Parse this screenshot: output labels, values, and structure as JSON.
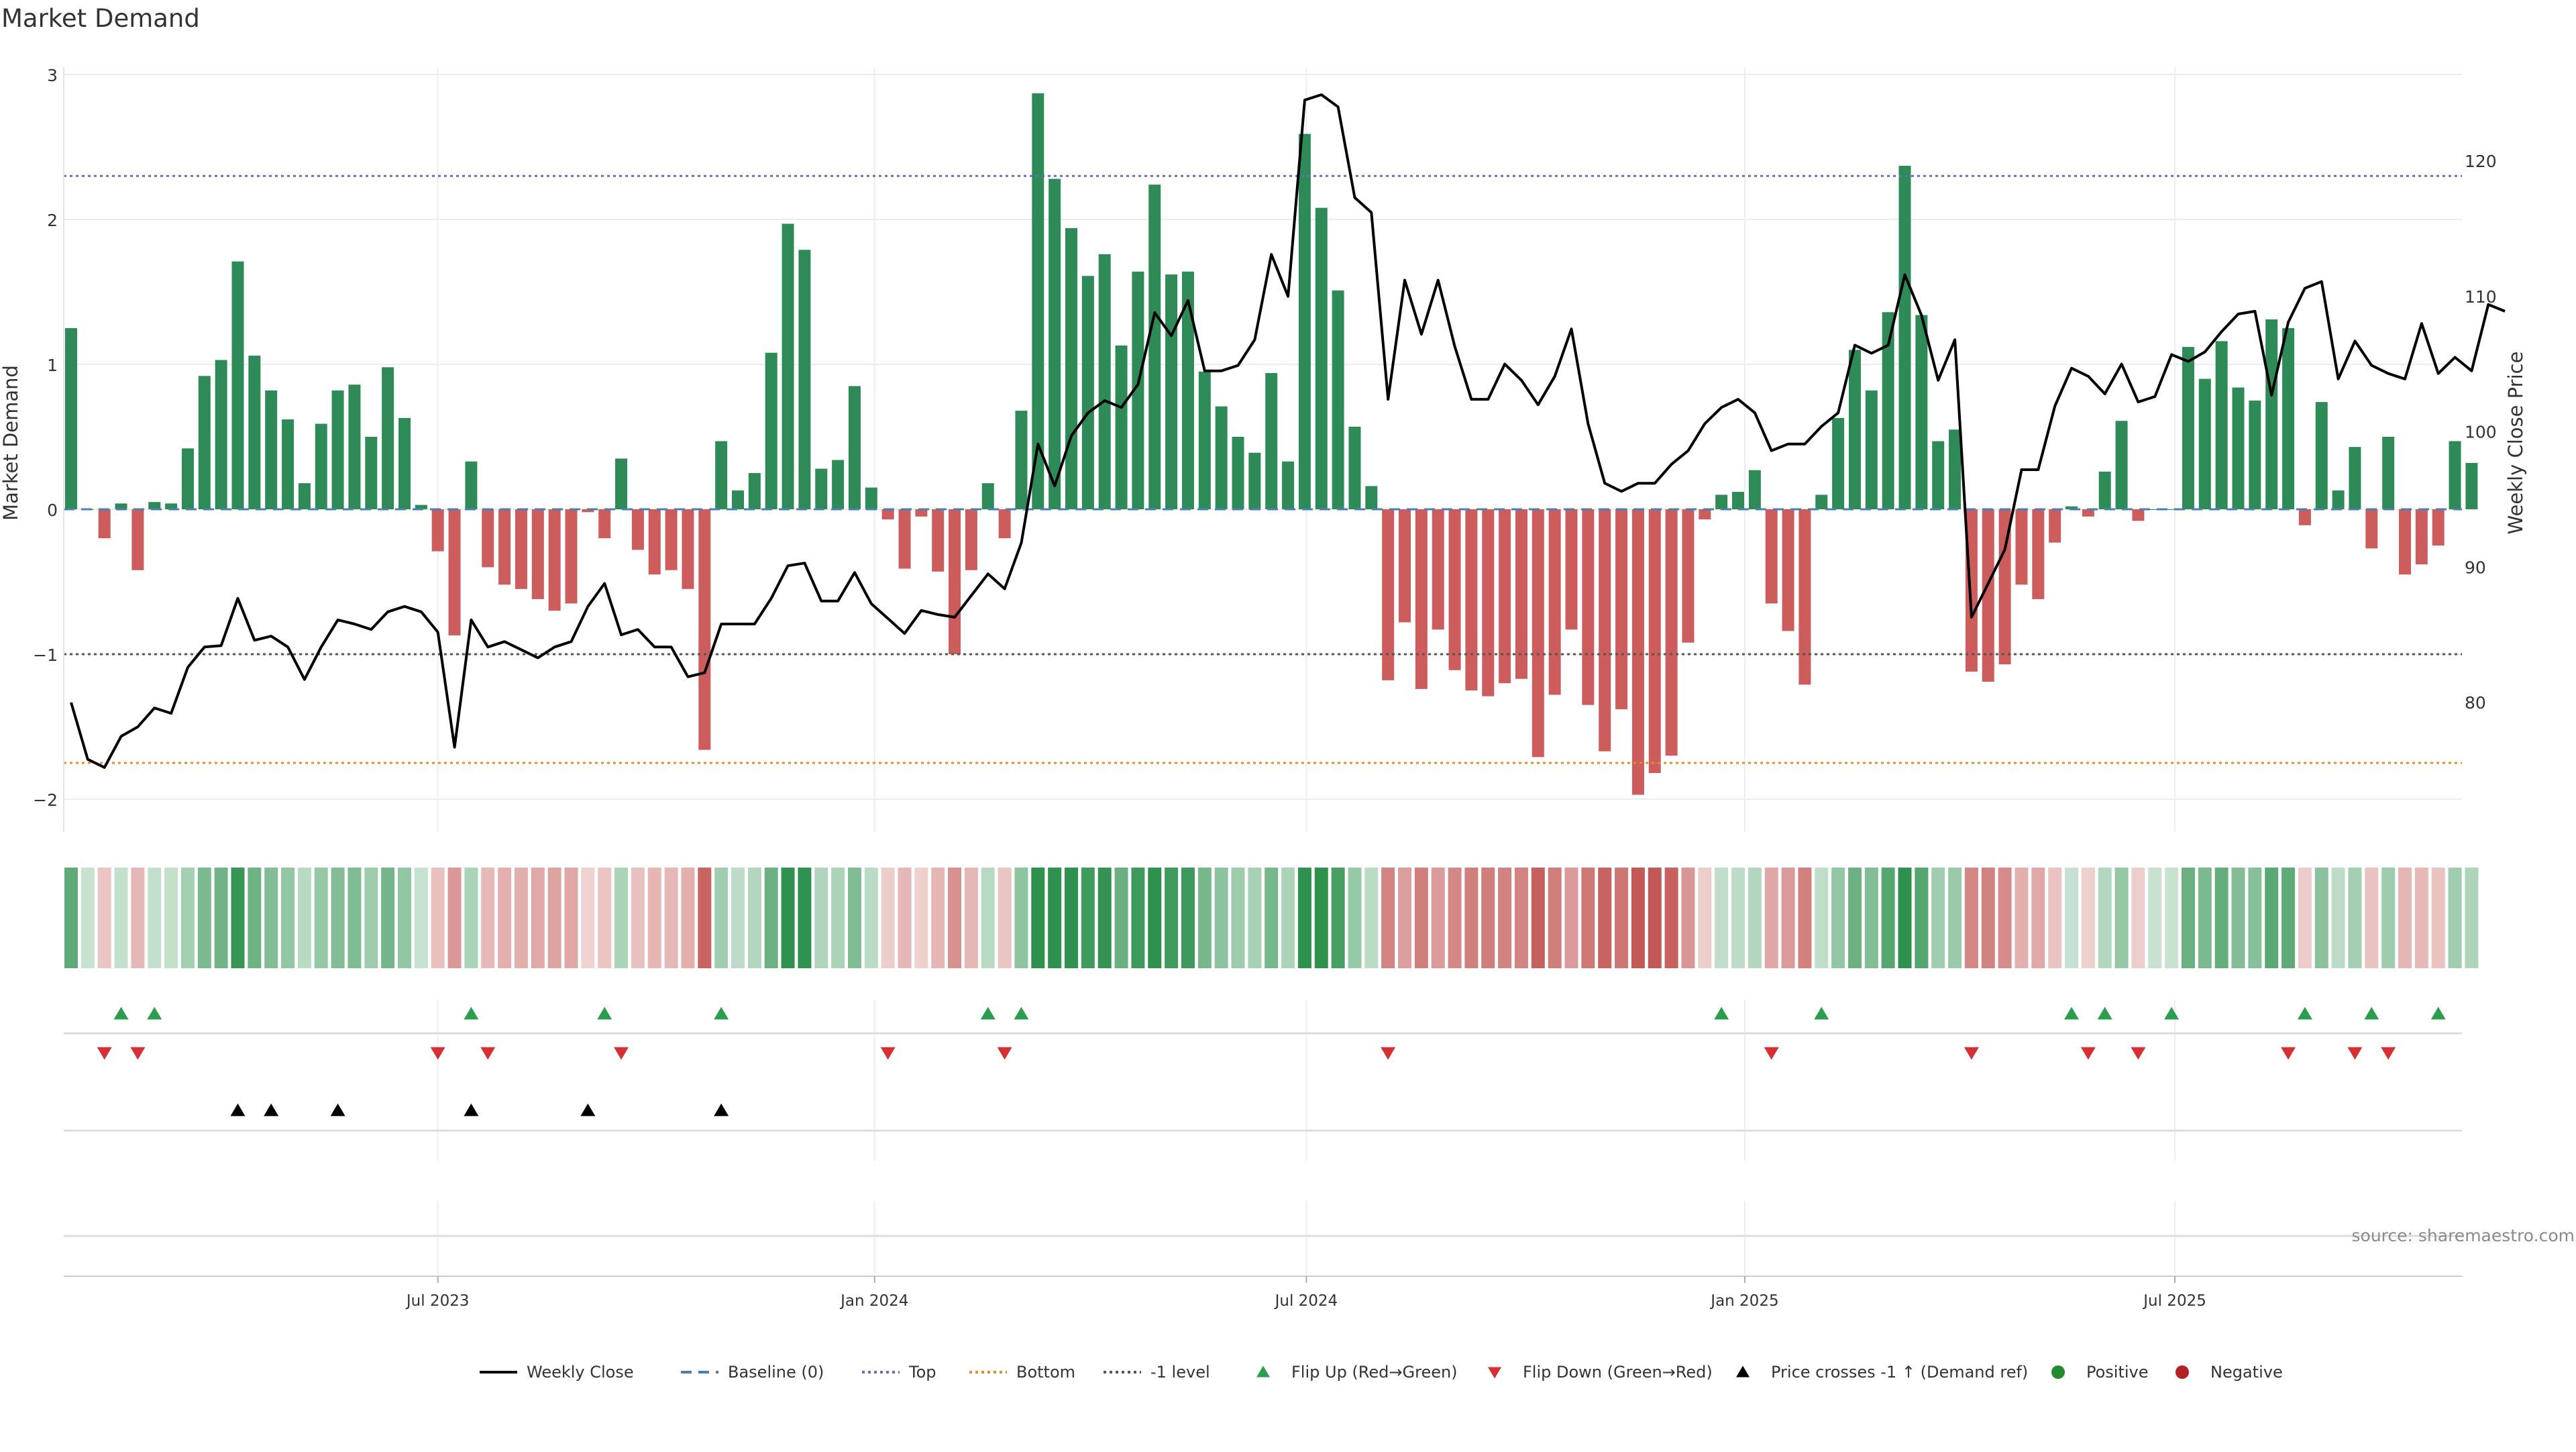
{
  "chart_data": {
    "type": "bar",
    "title": "Market Demand",
    "source": "source: sharemaestro.com",
    "ylabel_left": "Market Demand",
    "ylabel_right": "Weekly Close Price",
    "ylim_left": [
      -2.2,
      3.0
    ],
    "ylim_right": [
      70,
      127
    ],
    "yticks_left": [
      "3",
      "2",
      "1",
      "0",
      "−1",
      "−2"
    ],
    "ytick_values_left": [
      3,
      2,
      1,
      0,
      -1,
      -2
    ],
    "yticks_right": [
      "120",
      "110",
      "100",
      "90",
      "80"
    ],
    "ytick_values_right": [
      120,
      110,
      100,
      90,
      80
    ],
    "reference_lines": {
      "top": 2.3,
      "bottom": -1.75,
      "minus_one": -1.0,
      "baseline": 0
    },
    "x_ticks": [
      {
        "label": "Jul 2023",
        "index": 22
      },
      {
        "label": "Jan 2024",
        "index": 48.2
      },
      {
        "label": "Jul 2024",
        "index": 74.1
      },
      {
        "label": "Jan 2025",
        "index": 100.4
      },
      {
        "label": "Jul 2025",
        "index": 126.2
      }
    ],
    "demand": [
      1.25,
      0,
      -0.2,
      0.04,
      -0.42,
      0.05,
      0.04,
      0.42,
      0.92,
      1.03,
      1.71,
      1.06,
      0.82,
      0.62,
      0.18,
      0.59,
      0.82,
      0.86,
      0.5,
      0.98,
      0.63,
      0.03,
      -0.29,
      -0.87,
      0.33,
      -0.4,
      -0.52,
      -0.55,
      -0.62,
      -0.7,
      -0.65,
      -0.02,
      -0.2,
      0.35,
      -0.28,
      -0.45,
      -0.42,
      -0.55,
      -1.66,
      0.47,
      0.13,
      0.25,
      1.08,
      1.97,
      1.79,
      0.28,
      0.34,
      0.85,
      0.15,
      -0.07,
      -0.41,
      -0.05,
      -0.43,
      -1.0,
      -0.42,
      0.18,
      -0.2,
      0.68,
      2.87,
      2.28,
      1.94,
      1.61,
      1.76,
      1.13,
      1.64,
      2.24,
      1.62,
      1.64,
      0.95,
      0.71,
      0.5,
      0.39,
      0.94,
      0.33,
      2.59,
      2.08,
      1.51,
      0.57,
      0.16,
      -1.18,
      -0.78,
      -1.24,
      -0.83,
      -1.11,
      -1.25,
      -1.29,
      -1.2,
      -1.17,
      -1.71,
      -1.28,
      -0.83,
      -1.35,
      -1.67,
      -1.38,
      -1.97,
      -1.82,
      -1.7,
      -0.92,
      -0.07,
      0.1,
      0.12,
      0.27,
      -0.65,
      -0.84,
      -1.21,
      0.1,
      0.63,
      1.1,
      0.82,
      1.36,
      2.37,
      1.34,
      0.47,
      0.55,
      -1.12,
      -1.19,
      -1.07,
      -0.52,
      -0.62,
      -0.23,
      0.02,
      -0.05,
      0.26,
      0.61,
      -0.08,
      0,
      0,
      1.12,
      0.9,
      1.16,
      0.84,
      0.75,
      1.31,
      1.25,
      -0.11,
      0.74,
      0.13,
      0.43,
      -0.27,
      0.5,
      -0.45,
      -0.38,
      -0.25,
      0.47,
      0.32
    ],
    "weekly_close": [
      80,
      75.8,
      75.2,
      77.5,
      78.2,
      79.6,
      79.2,
      82.6,
      84.1,
      84.2,
      87.7,
      84.6,
      84.9,
      84.1,
      81.7,
      84.1,
      86.1,
      85.8,
      85.4,
      86.7,
      87.1,
      86.7,
      85.2,
      76.7,
      86.1,
      84.1,
      84.5,
      83.9,
      83.3,
      84.1,
      84.5,
      87.1,
      88.8,
      85.0,
      85.4,
      84.1,
      84.1,
      81.9,
      82.2,
      85.8,
      85.8,
      85.8,
      87.7,
      90.1,
      90.3,
      87.5,
      87.5,
      89.6,
      87.3,
      86.2,
      85.1,
      86.8,
      86.5,
      86.3,
      87.9,
      89.5,
      88.4,
      91.8,
      99.1,
      96.0,
      99.7,
      101.4,
      102.3,
      101.8,
      103.5,
      108.8,
      107.1,
      109.7,
      104.5,
      104.5,
      104.9,
      106.8,
      113.1,
      110,
      124.5,
      124.9,
      124,
      117.3,
      116.2,
      102.4,
      111.2,
      107.2,
      111.2,
      106.3,
      102.4,
      102.4,
      105,
      103.8,
      102,
      104.1,
      107.6,
      100.6,
      96.2,
      95.6,
      96.2,
      96.2,
      97.6,
      98.6,
      100.6,
      101.8,
      102.4,
      101.4,
      98.6,
      99.1,
      99.1,
      100.4,
      101.4,
      106.4,
      105.8,
      106.4,
      111.6,
      108.6,
      103.8,
      106.8,
      86.3,
      88.8,
      91.3,
      97.2,
      97.2,
      101.9,
      104.7,
      104.1,
      102.8,
      105,
      102.2,
      102.6,
      105.7,
      105.2,
      105.9,
      107.4,
      108.7,
      108.9,
      102.7,
      108.1,
      110.6,
      111.1,
      103.9,
      106.7,
      104.9,
      104.3,
      103.9,
      108,
      104.3,
      105.5,
      104.5,
      109.4,
      108.9
    ],
    "flip_up_indices": [
      3,
      5,
      24,
      32,
      39,
      55,
      57,
      99,
      105,
      120,
      122,
      126,
      134,
      138,
      142
    ],
    "flip_down_indices": [
      2,
      4,
      22,
      25,
      33,
      49,
      56,
      79,
      102,
      114,
      121,
      124,
      133,
      137,
      139
    ],
    "price_cross_indices": [
      10,
      12,
      16,
      24,
      31,
      39
    ],
    "legend": [
      {
        "label": "Weekly Close",
        "kind": "line",
        "color": "#000000"
      },
      {
        "label": "Baseline (0)",
        "kind": "dash",
        "color": "#4a7fb5"
      },
      {
        "label": "Top",
        "kind": "dot",
        "color": "#6b6bc4"
      },
      {
        "label": "Bottom",
        "kind": "dot",
        "color": "#e0902b"
      },
      {
        "label": "-1 level",
        "kind": "dot",
        "color": "#555555"
      },
      {
        "label": "Flip Up (Red→Green)",
        "kind": "tri-up",
        "color": "#2a9d4e"
      },
      {
        "label": "Flip Down (Green→Red)",
        "kind": "tri-down",
        "color": "#d63035"
      },
      {
        "label": "Price crosses -1 ↑ (Demand ref)",
        "kind": "tri-up",
        "color": "#000000"
      },
      {
        "label": "Positive",
        "kind": "dot-marker",
        "color": "#238b2f"
      },
      {
        "label": "Negative",
        "kind": "dot-marker",
        "color": "#b22222"
      }
    ],
    "colors": {
      "positive_bar": "#2e8b57",
      "negative_bar": "#cd5c5c",
      "price_line": "#000000",
      "top_line": "#6b6bc4",
      "bottom_line": "#e0902b",
      "minus_one_line": "#555555",
      "baseline": "#4a7fb5",
      "strip_positive": "#238b45",
      "strip_negative": "#c0504d",
      "flip_up": "#2a9d4e",
      "flip_down": "#d63035",
      "price_cross": "#000000"
    }
  }
}
